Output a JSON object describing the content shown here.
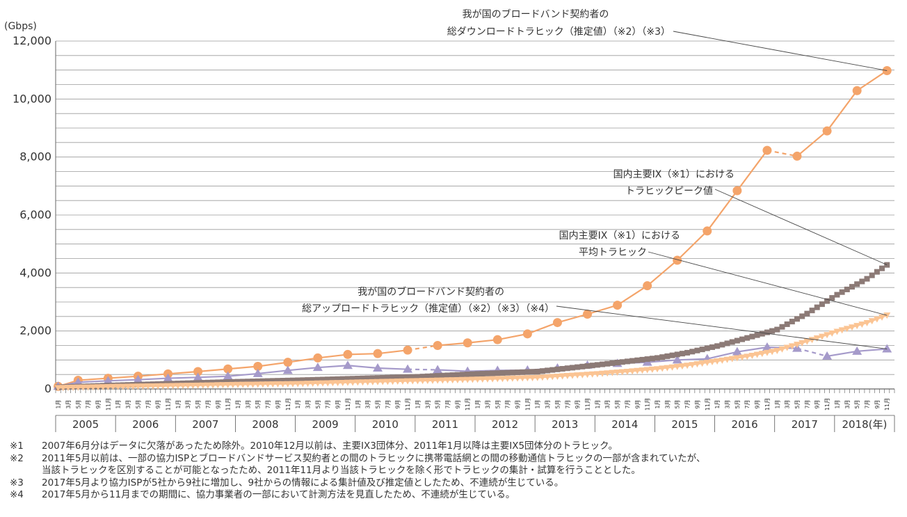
{
  "chart_data": {
    "type": "line",
    "unit_label": "(Gbps)",
    "ylim": [
      0,
      12000
    ],
    "y_ticks": [
      0,
      2000,
      4000,
      6000,
      8000,
      10000,
      12000
    ],
    "y_tick_labels": [
      "0",
      "2,000",
      "4,000",
      "6,000",
      "8,000",
      "10,000",
      "12,000"
    ],
    "years": [
      "2005",
      "2006",
      "2007",
      "2008",
      "2009",
      "2010",
      "2011",
      "2012",
      "2013",
      "2014",
      "2015",
      "2016",
      "2017",
      "2018(年)"
    ],
    "month_labels": [
      "1月",
      "3月",
      "5月",
      "7月",
      "9月",
      "11月"
    ],
    "x_note": "x = months since Jan 2005 (0 = 2005-01)",
    "series": [
      {
        "name": "我が国のブロードバンド契約者の総ダウンロードトラヒック（推定値）（※2）（※3）",
        "color": "#F4A46A",
        "marker": "circle",
        "points": [
          {
            "x": 0,
            "y": 90
          },
          {
            "x": 4,
            "y": 300
          },
          {
            "x": 10,
            "y": 370
          },
          {
            "x": 16,
            "y": 440
          },
          {
            "x": 22,
            "y": 520
          },
          {
            "x": 28,
            "y": 600
          },
          {
            "x": 34,
            "y": 690
          },
          {
            "x": 40,
            "y": 780
          },
          {
            "x": 46,
            "y": 920
          },
          {
            "x": 52,
            "y": 1070
          },
          {
            "x": 58,
            "y": 1190
          },
          {
            "x": 64,
            "y": 1220
          },
          {
            "x": 70,
            "y": 1340
          },
          {
            "x": 76,
            "y": 1500
          },
          {
            "x": 82,
            "y": 1590
          },
          {
            "x": 88,
            "y": 1700
          },
          {
            "x": 94,
            "y": 1900
          },
          {
            "x": 100,
            "y": 2290
          },
          {
            "x": 106,
            "y": 2580
          },
          {
            "x": 112,
            "y": 2890
          },
          {
            "x": 118,
            "y": 3560
          },
          {
            "x": 124,
            "y": 4440
          },
          {
            "x": 130,
            "y": 5450
          },
          {
            "x": 136,
            "y": 6840
          },
          {
            "x": 142,
            "y": 8230
          },
          {
            "x": 148,
            "y": 8030
          },
          {
            "x": 154,
            "y": 8900
          },
          {
            "x": 160,
            "y": 10290
          },
          {
            "x": 166,
            "y": 10980
          }
        ],
        "dashed_after_index": [
          12,
          24
        ]
      },
      {
        "name": "我が国のブロードバンド契約者の総アップロードトラヒック（推定値）（※2）（※3）（※4）",
        "color": "#A59ACA",
        "marker": "triangle",
        "points": [
          {
            "x": 0,
            "y": 90
          },
          {
            "x": 4,
            "y": 230
          },
          {
            "x": 10,
            "y": 280
          },
          {
            "x": 16,
            "y": 320
          },
          {
            "x": 22,
            "y": 370
          },
          {
            "x": 28,
            "y": 400
          },
          {
            "x": 34,
            "y": 440
          },
          {
            "x": 40,
            "y": 530
          },
          {
            "x": 46,
            "y": 640
          },
          {
            "x": 52,
            "y": 740
          },
          {
            "x": 58,
            "y": 810
          },
          {
            "x": 64,
            "y": 720
          },
          {
            "x": 70,
            "y": 680
          },
          {
            "x": 76,
            "y": 660
          },
          {
            "x": 82,
            "y": 610
          },
          {
            "x": 88,
            "y": 640
          },
          {
            "x": 94,
            "y": 650
          },
          {
            "x": 100,
            "y": 720
          },
          {
            "x": 106,
            "y": 820
          },
          {
            "x": 112,
            "y": 880
          },
          {
            "x": 118,
            "y": 920
          },
          {
            "x": 124,
            "y": 1000
          },
          {
            "x": 130,
            "y": 1040
          },
          {
            "x": 136,
            "y": 1280
          },
          {
            "x": 142,
            "y": 1440
          },
          {
            "x": 148,
            "y": 1400
          },
          {
            "x": 154,
            "y": 1130
          },
          {
            "x": 160,
            "y": 1300
          },
          {
            "x": 166,
            "y": 1380
          }
        ],
        "dashed_after_index": [
          12,
          25
        ]
      },
      {
        "name": "国内主要IX（※1）におけるトラヒックピーク値",
        "color": "#8C7A76",
        "marker": "square",
        "points": [
          {
            "x": 0,
            "y": 60
          },
          {
            "x": 12,
            "y": 130
          },
          {
            "x": 24,
            "y": 190
          },
          {
            "x": 36,
            "y": 250
          },
          {
            "x": 48,
            "y": 300
          },
          {
            "x": 60,
            "y": 360
          },
          {
            "x": 72,
            "y": 420
          },
          {
            "x": 84,
            "y": 520
          },
          {
            "x": 96,
            "y": 600
          },
          {
            "x": 108,
            "y": 830
          },
          {
            "x": 114,
            "y": 950
          },
          {
            "x": 120,
            "y": 1070
          },
          {
            "x": 126,
            "y": 1250
          },
          {
            "x": 132,
            "y": 1480
          },
          {
            "x": 138,
            "y": 1760
          },
          {
            "x": 144,
            "y": 2050
          },
          {
            "x": 150,
            "y": 2600
          },
          {
            "x": 156,
            "y": 3250
          },
          {
            "x": 162,
            "y": 3800
          },
          {
            "x": 166,
            "y": 4280
          }
        ]
      },
      {
        "name": "国内主要IX（※1）における平均トラヒック",
        "color": "#FBC493",
        "marker": "down-triangle",
        "points": [
          {
            "x": 0,
            "y": 40
          },
          {
            "x": 12,
            "y": 80
          },
          {
            "x": 24,
            "y": 110
          },
          {
            "x": 36,
            "y": 150
          },
          {
            "x": 48,
            "y": 180
          },
          {
            "x": 60,
            "y": 230
          },
          {
            "x": 72,
            "y": 280
          },
          {
            "x": 84,
            "y": 330
          },
          {
            "x": 96,
            "y": 390
          },
          {
            "x": 108,
            "y": 520
          },
          {
            "x": 114,
            "y": 600
          },
          {
            "x": 120,
            "y": 690
          },
          {
            "x": 126,
            "y": 810
          },
          {
            "x": 132,
            "y": 960
          },
          {
            "x": 138,
            "y": 1120
          },
          {
            "x": 144,
            "y": 1320
          },
          {
            "x": 150,
            "y": 1640
          },
          {
            "x": 156,
            "y": 1980
          },
          {
            "x": 162,
            "y": 2280
          },
          {
            "x": 166,
            "y": 2540
          }
        ]
      }
    ],
    "annotations": [
      {
        "id": "download",
        "line1": "我が国のブロードバンド契約者の",
        "line2": "総ダウンロードトラヒック（推定値）（※2）（※3）",
        "points_to": {
          "series": 0,
          "x": 166
        }
      },
      {
        "id": "ix-peak",
        "line1": "国内主要IX（※1）における",
        "line2": "トラヒックピーク値",
        "points_to": {
          "series": 2,
          "x": 166
        }
      },
      {
        "id": "ix-average",
        "line1": "国内主要IX（※1）における",
        "line2": "平均トラヒック",
        "points_to": {
          "series": 3,
          "x": 166
        }
      },
      {
        "id": "upload",
        "line1": "我が国のブロードバンド契約者の",
        "line2": "総アップロードトラヒック（推定値）（※2）（※3）（※4）",
        "points_to": {
          "series": 1,
          "x": 166
        }
      }
    ]
  },
  "footnotes": [
    {
      "mark": "※1",
      "text": "2007年6月分はデータに欠落があったため除外。2010年12月以前は、主要IX3団体分、2011年1月以降は主要IX5団体分のトラヒック。"
    },
    {
      "mark": "※2",
      "text": "2011年5月以前は、一部の協力ISPとブロードバンドサービス契約者との間のトラヒックに携帯電話網との間の移動通信トラヒックの一部が含まれていたが、"
    },
    {
      "mark": "",
      "text": "当該トラヒックを区別することが可能となったため、2011年11月より当該トラヒックを除く形でトラヒックの集計・試算を行うこととした。"
    },
    {
      "mark": "※3",
      "text": "2017年5月より協力ISPが5社から9社に増加し、9社からの情報による集計値及び推定値としたため、不連続が生じている。"
    },
    {
      "mark": "※4",
      "text": "2017年5月から11月までの期間に、協力事業者の一部において計測方法を見直したため、不連続が生じている。"
    }
  ]
}
